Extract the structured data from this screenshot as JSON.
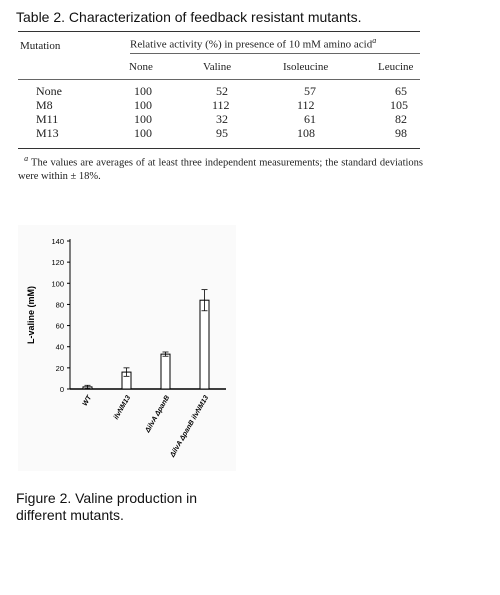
{
  "table": {
    "title": "Table 2. Characterization of feedback resistant mutants.",
    "mutation_header": "Mutation",
    "span_header": "Relative activity (%) in presence of 10 mM amino acid",
    "span_footnote_mark": "a",
    "columns": [
      "None",
      "Valine",
      "Isoleucine",
      "Leucine"
    ],
    "rows": [
      {
        "mutation": "None",
        "values": [
          "100",
          "52",
          "57",
          "65"
        ]
      },
      {
        "mutation": "M8",
        "values": [
          "100",
          "112",
          "112",
          "105"
        ]
      },
      {
        "mutation": "M11",
        "values": [
          "100",
          "32",
          "61",
          "82"
        ]
      },
      {
        "mutation": "M13",
        "values": [
          "100",
          "95",
          "108",
          "98"
        ]
      }
    ],
    "footnote_mark": "a",
    "footnote": "The values are averages of at least three independent measurements; the standard deviations were within ± 18%."
  },
  "figure": {
    "caption": "Figure 2. Valine production in different mutants.",
    "chart_data": {
      "type": "bar",
      "categories": [
        "WT",
        "ilvNM13",
        "ΔilvA ΔpanB",
        "ΔilvA ΔpanB ilvNM13"
      ],
      "values": [
        2,
        16,
        33,
        84
      ],
      "errors": [
        1.5,
        4,
        2,
        10
      ],
      "xlabel": "",
      "ylabel": "L-valine (mM)",
      "ylim": [
        0,
        140
      ],
      "yticks": [
        0,
        20,
        40,
        60,
        80,
        100,
        120,
        140
      ],
      "colors": {
        "bar_fill": "#ffffff",
        "bar_stroke": "#000000"
      }
    }
  }
}
